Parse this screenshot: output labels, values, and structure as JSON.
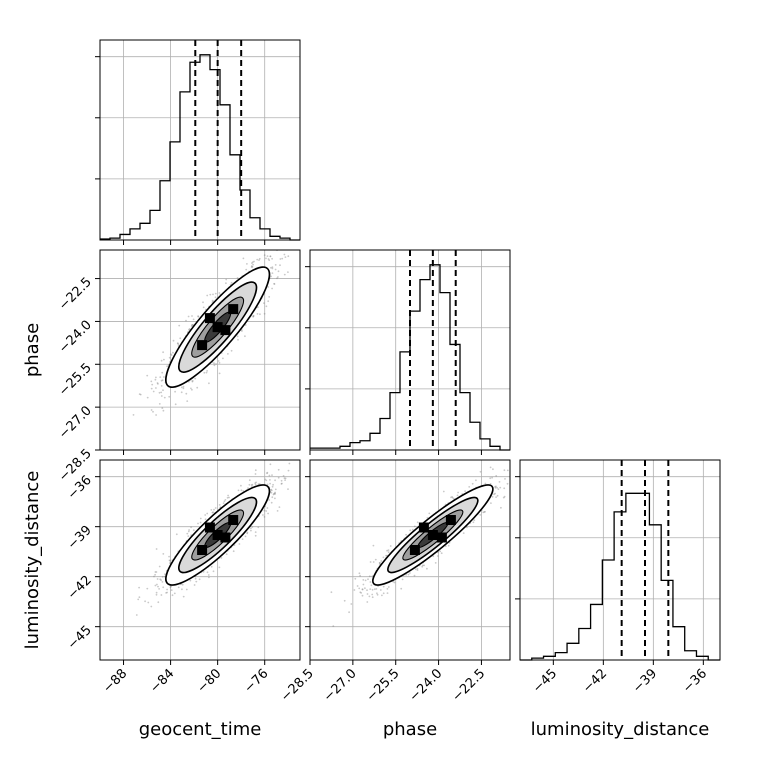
{
  "chart_data": {
    "type": "corner",
    "parameters": [
      {
        "name": "geocent_time",
        "label": "geocent_time",
        "lim": [
          -90,
          -73
        ],
        "ticks": [
          -88,
          -84,
          -80,
          -76
        ],
        "tick_labels": [
          "−88",
          "−84",
          "−80",
          "−76"
        ],
        "quantiles": [
          -81.9,
          -80.0,
          -78.0
        ],
        "hist": [
          0.005,
          0.01,
          0.03,
          0.06,
          0.09,
          0.16,
          0.32,
          0.53,
          0.8,
          0.96,
          1.0,
          0.92,
          0.73,
          0.46,
          0.27,
          0.12,
          0.06,
          0.02,
          0.01,
          0.0
        ],
        "hist_ylim": [
          0,
          1.08
        ],
        "hist_yticks": [
          0.33,
          0.66,
          0.99
        ]
      },
      {
        "name": "phase",
        "label": "phase",
        "lim": [
          -28.5,
          -21.5
        ],
        "ticks": [
          -28.5,
          -27.0,
          -25.5,
          -24.0,
          -22.5
        ],
        "tick_labels": [
          "−28.5",
          "−27.0",
          "−25.5",
          "−24.0",
          "−22.5"
        ],
        "quantiles": [
          -25.0,
          -24.2,
          -23.4
        ],
        "hist": [
          0.01,
          0.01,
          0.01,
          0.02,
          0.04,
          0.05,
          0.09,
          0.17,
          0.31,
          0.53,
          0.75,
          0.92,
          1.0,
          0.85,
          0.57,
          0.31,
          0.15,
          0.06,
          0.02,
          0.0
        ],
        "hist_ylim": [
          0,
          1.08
        ],
        "hist_yticks": [
          0.33,
          0.66,
          0.99
        ]
      },
      {
        "name": "luminosity_distance",
        "label": "luminosity_distance",
        "lim": [
          -47,
          -35
        ],
        "ticks": [
          -45,
          -42,
          -39,
          -36
        ],
        "tick_labels": [
          "−45",
          "−42",
          "−39",
          "−36"
        ],
        "quantiles": [
          -40.9,
          -39.5,
          -38.1
        ],
        "hist": [
          0.0,
          0.01,
          0.02,
          0.04,
          0.09,
          0.17,
          0.3,
          0.54,
          0.8,
          0.9,
          0.9,
          0.73,
          0.43,
          0.18,
          0.05,
          0.02,
          0.0
        ],
        "hist_ylim": [
          0,
          1.08
        ],
        "hist_yticks": [
          0.33,
          0.66,
          0.99
        ]
      }
    ],
    "pairs": [
      {
        "x": 0,
        "y": 1,
        "mean": [
          -80.0,
          -24.2
        ],
        "sd": [
          2.2,
          1.05
        ],
        "rho": 0.88
      },
      {
        "x": 0,
        "y": 2,
        "mean": [
          -80.0,
          -39.5
        ],
        "sd": [
          2.2,
          1.5
        ],
        "rho": 0.88
      },
      {
        "x": 1,
        "y": 2,
        "mean": [
          -24.2,
          -39.5
        ],
        "sd": [
          1.05,
          1.5
        ],
        "rho": 0.92
      }
    ],
    "contour_levels_sigma": [
      0.5,
      1.0,
      1.5,
      2.0
    ],
    "grid": true,
    "quantile_lines": "dashed"
  }
}
